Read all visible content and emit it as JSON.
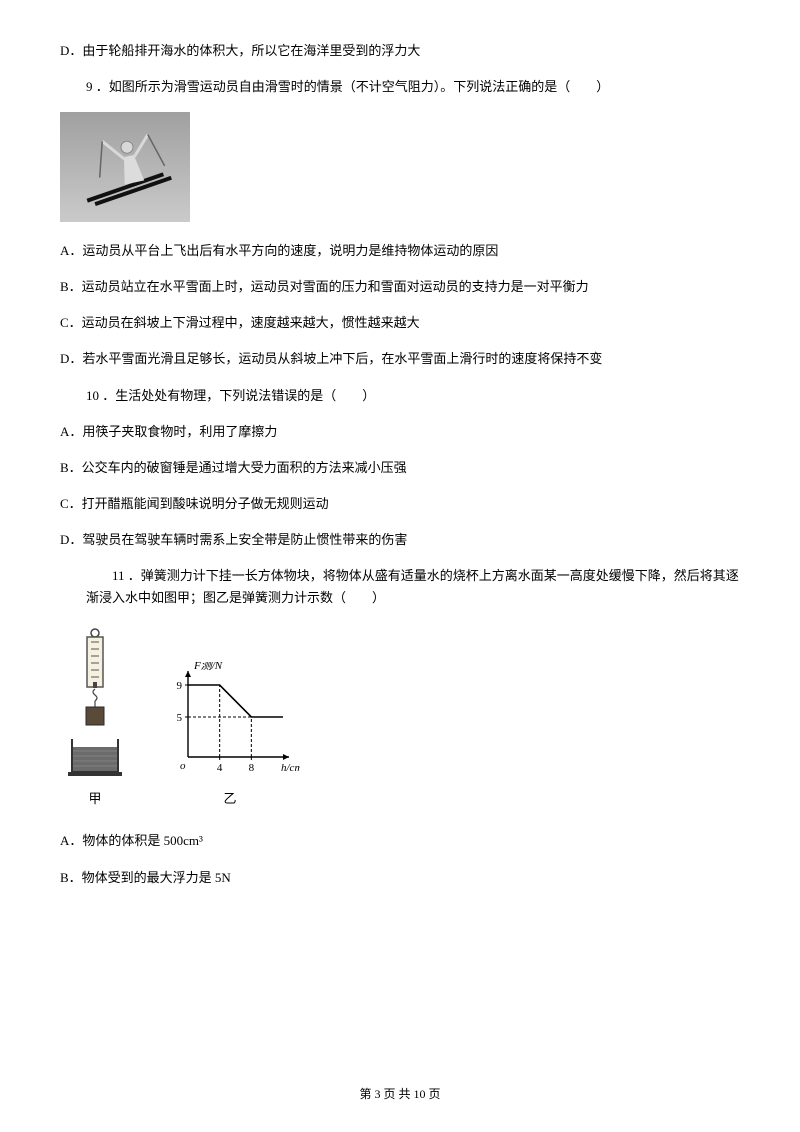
{
  "q8_optD": "D．由于轮船排开海水的体积大，所以它在海洋里受到的浮力大",
  "q9": {
    "stem": "9 ．如图所示为滑雪运动员自由滑雪时的情景（不计空气阻力）。下列说法正确的是（　　）",
    "image": {
      "width": 130,
      "height": 110,
      "bg_top": "#a8a8a8",
      "bg_bottom": "#c8c8c8",
      "skier_color": "#e8e8e8",
      "ski_color": "#111111"
    },
    "A": "A．运动员从平台上飞出后有水平方向的速度，说明力是维持物体运动的原因",
    "B": "B．运动员站立在水平雪面上时，运动员对雪面的压力和雪面对运动员的支持力是一对平衡力",
    "C": "C．运动员在斜坡上下滑过程中，速度越来越大，惯性越来越大",
    "D": "D．若水平雪面光滑且足够长，运动员从斜坡上冲下后，在水平雪面上滑行时的速度将保持不变"
  },
  "q10": {
    "stem": "10 ．生活处处有物理，下列说法错误的是（　　）",
    "A": "A．用筷子夹取食物时，利用了摩擦力",
    "B": "B．公交车内的破窗锤是通过增大受力面积的方法来减小压强",
    "C": "C．打开醋瓶能闻到酸味说明分子做无规则运动",
    "D": "D．驾驶员在驾驶车辆时需系上安全带是防止惯性带来的伤害"
  },
  "q11": {
    "stem": "11 ．弹簧测力计下挂一长方体物块，将物体从盛有适量水的烧杯上方离水面某一高度处缓慢下降，然后将其逐渐浸入水中如图甲；图乙是弹簧测力计示数（　　）",
    "diagram_left": {
      "label": "甲",
      "spring_color": "#555555",
      "hook_color": "#444444",
      "block_fill": "#8a7a5a",
      "water_fill": "#6b6b6b",
      "beaker_stroke": "#333333"
    },
    "diagram_right": {
      "label": "乙",
      "type": "line",
      "x_label": "h/cm",
      "y_label": "F测/N",
      "y_ticks": [
        5,
        9
      ],
      "x_ticks": [
        4,
        8
      ],
      "y_max": 10,
      "x_max": 12,
      "axis_color": "#000000",
      "line_color": "#000000",
      "line_width": 1.6,
      "dash_color": "#000000",
      "points": [
        {
          "x": 0,
          "y": 9
        },
        {
          "x": 4,
          "y": 9
        },
        {
          "x": 8,
          "y": 5
        },
        {
          "x": 12,
          "y": 5
        }
      ],
      "font_size": 11
    },
    "A": "A．物体的体积是 500cm³",
    "B": "B．物体受到的最大浮力是 5N"
  },
  "footer": "第 3 页 共 10 页"
}
